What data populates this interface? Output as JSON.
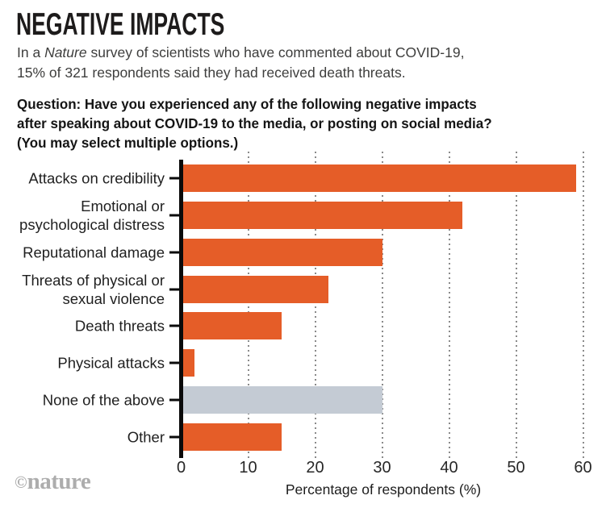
{
  "header": {
    "title": "NEGATIVE IMPACTS",
    "subtitle": {
      "pre": "In a ",
      "italic": "Nature",
      "post": " survey of scientists who have commented about COVID-19,\n15% of 321 respondents said they had received death threats."
    },
    "question": "Question: Have you experienced any of the following negative impacts\nafter speaking about COVID-19 to the media, or posting on social media?\n(You may select multiple options.)"
  },
  "chart_data": {
    "type": "bar",
    "orientation": "horizontal",
    "categories": [
      "Attacks on credibility",
      "Emotional or\npsychological distress",
      "Reputational damage",
      "Threats of physical or\nsexual violence",
      "Death threats",
      "Physical attacks",
      "None of the above",
      "Other"
    ],
    "values": [
      59,
      42,
      30,
      22,
      15,
      2,
      30,
      15
    ],
    "bar_colors": [
      "#e55d28",
      "#e55d28",
      "#e55d28",
      "#e55d28",
      "#e55d28",
      "#e55d28",
      "#c4cbd4",
      "#e55d28"
    ],
    "xlabel": "Percentage of respondents (%)",
    "xlim": [
      0,
      60
    ],
    "xticks": [
      0,
      10,
      20,
      30,
      40,
      50,
      60
    ],
    "grid": "vertical-dotted",
    "legend": "none"
  },
  "colors": {
    "bar_orange": "#e55d28",
    "bar_gray": "#c4cbd4",
    "axis_black": "#0b0b0b",
    "gridline_gray": "#8a8a8a",
    "title_text": "#1d1b1b",
    "subtitle_text": "#3e3e3d",
    "logo_gray": "#adadad",
    "background": "#ffffff"
  },
  "footer": {
    "logo_symbol": "©",
    "logo_text": "nature"
  }
}
